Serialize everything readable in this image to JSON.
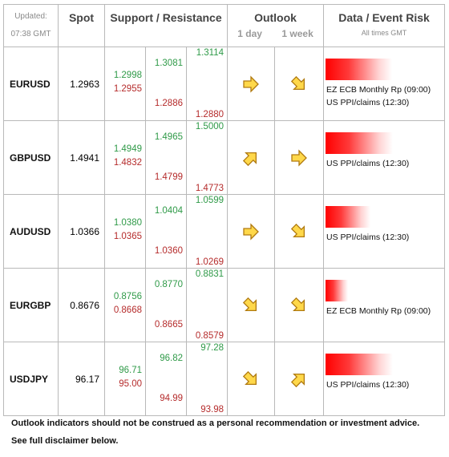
{
  "header": {
    "updated_label": "Updated:",
    "updated_time": "07:38 GMT",
    "spot": "Spot",
    "support_resistance": "Support / Resistance",
    "outlook": "Outlook",
    "outlook_1day": "1 day",
    "outlook_1week": "1 week",
    "risk": "Data / Event Risk",
    "risk_sub": "All times GMT"
  },
  "rows": [
    {
      "pair": "EURUSD",
      "spot": "1.2963",
      "s1": [
        "1.2998",
        "1.2955"
      ],
      "s2": [
        "1.3081",
        "1.2886"
      ],
      "s3": [
        "1.3114",
        "1.2880"
      ],
      "out1": "right-arrow-icon",
      "out2": "down-right-arrow-icon",
      "risk_level": 0.56,
      "events": [
        "EZ ECB Monthly Rp (09:00)",
        "US PPI/claims (12:30)"
      ]
    },
    {
      "pair": "GBPUSD",
      "spot": "1.4941",
      "s1": [
        "1.4949",
        "1.4832"
      ],
      "s2": [
        "1.4965",
        "1.4799"
      ],
      "s3": [
        "1.5000",
        "1.4773"
      ],
      "out1": "up-right-arrow-icon",
      "out2": "right-arrow-icon",
      "risk_level": 0.57,
      "events": [
        "US PPI/claims (12:30)"
      ]
    },
    {
      "pair": "AUDUSD",
      "spot": "1.0366",
      "s1": [
        "1.0380",
        "1.0365"
      ],
      "s2": [
        "1.0404",
        "1.0360"
      ],
      "s3": [
        "1.0599",
        "1.0269"
      ],
      "out1": "right-arrow-icon",
      "out2": "down-right-arrow-icon",
      "risk_level": 0.38,
      "events": [
        "US PPI/claims (12:30)"
      ]
    },
    {
      "pair": "EURGBP",
      "spot": "0.8676",
      "s1": [
        "0.8756",
        "0.8668"
      ],
      "s2": [
        "0.8770",
        "0.8665"
      ],
      "s3": [
        "0.8831",
        "0.8579"
      ],
      "out1": "down-right-arrow-icon",
      "out2": "down-right-arrow-icon",
      "risk_level": 0.19,
      "events": [
        "EZ ECB Monthly Rp (09:00)"
      ]
    },
    {
      "pair": "USDJPY",
      "spot": "96.17",
      "s1": [
        "96.71",
        "95.00"
      ],
      "s2": [
        "96.82",
        "94.99"
      ],
      "s3": [
        "97.28",
        "93.98"
      ],
      "out1": "down-right-arrow-icon",
      "out2": "up-right-arrow-icon",
      "risk_level": 0.57,
      "events": [
        "US PPI/claims (12:30)"
      ]
    }
  ],
  "footer": {
    "line1": "Outlook indicators should not be construed as a personal recommendation or investment advice.",
    "line2": "See full disclaimer below."
  },
  "colors": {
    "support": "#2f9a48",
    "resistance": "#b52b2b",
    "arrow_fill": "#ffd84a",
    "arrow_stroke": "#b07a10"
  }
}
